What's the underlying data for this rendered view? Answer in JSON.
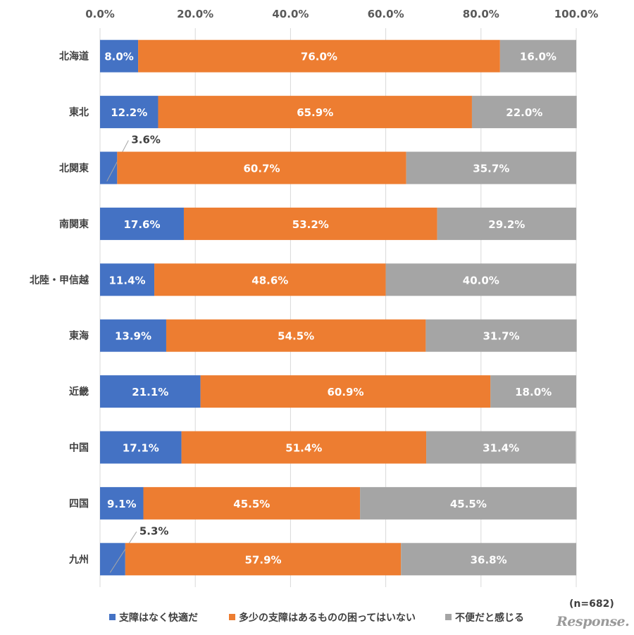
{
  "chart_data": {
    "type": "bar",
    "orientation": "horizontal",
    "stacked": "percent",
    "xlim": [
      0,
      100
    ],
    "ticks": [
      "0.0%",
      "20.0%",
      "40.0%",
      "60.0%",
      "80.0%",
      "100.0%"
    ],
    "categories": [
      "北海道",
      "東北",
      "北関東",
      "南関東",
      "北陸・甲信越",
      "東海",
      "近畿",
      "中国",
      "四国",
      "九州"
    ],
    "series": [
      {
        "name": "支障はなく快適だ",
        "color": "#4472C4",
        "values": [
          8.0,
          12.2,
          3.6,
          17.6,
          11.4,
          13.9,
          21.1,
          17.1,
          9.1,
          5.3
        ]
      },
      {
        "name": "多少の支障はあるものの困ってはいない",
        "color": "#ED7D31",
        "values": [
          76.0,
          65.9,
          60.7,
          53.2,
          48.6,
          54.5,
          60.9,
          51.4,
          45.5,
          57.9
        ]
      },
      {
        "name": "不便だと感じる",
        "color": "#A5A5A5",
        "values": [
          16.0,
          22.0,
          35.7,
          29.2,
          40.0,
          31.7,
          18.0,
          31.4,
          45.5,
          36.8
        ]
      }
    ],
    "outside_labels": [
      {
        "category": "北関東",
        "series": "支障はなく快適だ"
      },
      {
        "category": "九州",
        "series": "支障はなく快適だ"
      }
    ],
    "grid": true,
    "legend": "bottom"
  },
  "note": "(n=682)",
  "logo": "Response."
}
